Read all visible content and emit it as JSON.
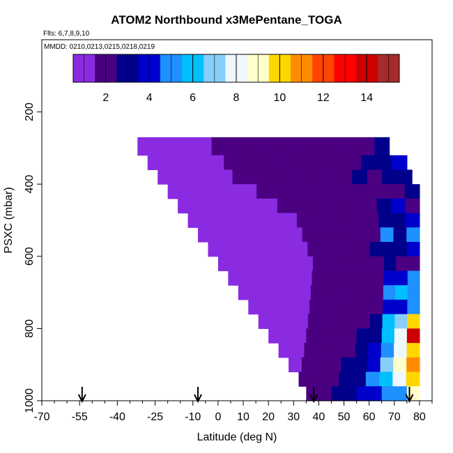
{
  "title": "ATOM2 Northbound x3MePentane_TOGA",
  "flights_label": "Flts: 6,7,8,9,10",
  "dates_label": "MMDD: 0210,0213,0215,0218,0219",
  "chart_data": {
    "type": "heatmap",
    "title": "ATOM2 Northbound x3MePentane_TOGA",
    "xlabel": "Latitude (deg N)",
    "ylabel": "PSXC (mbar)",
    "xlim": [
      -70,
      85
    ],
    "ylim": [
      1000,
      0
    ],
    "x_ticks": [
      -70,
      -55,
      -40,
      -25,
      -10,
      0,
      10,
      20,
      30,
      40,
      50,
      60,
      70,
      80
    ],
    "y_ticks": [
      200,
      400,
      600,
      800,
      1000
    ],
    "colorbar": {
      "range": [
        0.5,
        15.5
      ],
      "ticks": [
        2,
        4,
        6,
        8,
        10,
        12,
        14
      ],
      "colors": [
        "#8a2be2",
        "#4b0082",
        "#00008b",
        "#0000cd",
        "#1e90ff",
        "#00bfff",
        "#87cefa",
        "#f0f8ff",
        "#ffffcc",
        "#ffd700",
        "#ff8c00",
        "#ff4500",
        "#ff0000",
        "#cc0000",
        "#a52a2a"
      ]
    },
    "arrows_latitude": [
      -54,
      -8,
      38,
      76
    ],
    "rows": [
      {
        "p_top": 270,
        "p_bot": 320,
        "lat_start": -32,
        "lat_end": 68,
        "values": [
          1.2,
          1.2,
          1.3,
          1.3,
          1.4,
          1.5,
          1.7,
          1.8,
          2.0,
          2.2,
          2.3,
          2.3,
          2.2,
          2.3,
          2.4,
          2.4,
          2.5
        ]
      },
      {
        "p_top": 320,
        "p_bot": 360,
        "lat_start": -28,
        "lat_end": 75,
        "values": [
          1.2,
          1.2,
          1.3,
          1.3,
          1.4,
          1.5,
          1.6,
          1.7,
          1.9,
          2.0,
          2.2,
          2.3,
          2.3,
          2.4,
          2.5,
          2.6,
          3.5
        ]
      },
      {
        "p_top": 360,
        "p_bot": 400,
        "lat_start": -24,
        "lat_end": 77,
        "values": [
          1.2,
          1.2,
          1.2,
          1.3,
          1.4,
          1.5,
          1.6,
          1.7,
          1.9,
          2.0,
          2.2,
          2.3,
          2.4,
          2.5,
          2.4,
          3.0,
          2.5
        ]
      },
      {
        "p_top": 400,
        "p_bot": 440,
        "lat_start": -20,
        "lat_end": 80,
        "values": [
          1.1,
          1.1,
          1.2,
          1.2,
          1.3,
          1.4,
          1.5,
          1.6,
          1.7,
          1.8,
          1.9,
          2.0,
          2.1,
          2.2,
          2.4,
          2.0,
          3.2
        ]
      },
      {
        "p_top": 440,
        "p_bot": 480,
        "lat_start": -16,
        "lat_end": 80,
        "values": [
          1.1,
          1.1,
          1.1,
          1.2,
          1.2,
          1.3,
          1.4,
          1.5,
          1.6,
          1.7,
          1.8,
          1.9,
          2.0,
          2.1,
          2.6,
          3.8,
          2.4
        ]
      },
      {
        "p_top": 480,
        "p_bot": 520,
        "lat_start": -12,
        "lat_end": 80,
        "values": [
          1.1,
          1.1,
          1.1,
          1.1,
          1.2,
          1.2,
          1.3,
          1.4,
          1.5,
          1.6,
          1.7,
          1.9,
          2.0,
          2.3,
          3.2,
          2.8,
          3.6
        ]
      },
      {
        "p_top": 520,
        "p_bot": 560,
        "lat_start": -8,
        "lat_end": 80,
        "values": [
          1.1,
          1.1,
          1.1,
          1.1,
          1.2,
          1.2,
          1.3,
          1.4,
          1.5,
          1.6,
          1.7,
          1.8,
          2.0,
          2.4,
          4.5,
          3.0,
          5.0
        ]
      },
      {
        "p_top": 560,
        "p_bot": 600,
        "lat_start": -4,
        "lat_end": 80,
        "values": [
          1.1,
          1.1,
          1.1,
          1.1,
          1.1,
          1.2,
          1.3,
          1.4,
          1.5,
          1.6,
          1.7,
          1.8,
          2.0,
          2.5,
          3.2,
          2.6,
          4.2
        ]
      },
      {
        "p_top": 600,
        "p_bot": 640,
        "lat_start": 0,
        "lat_end": 80,
        "values": [
          1.1,
          1.1,
          1.1,
          1.1,
          1.1,
          1.2,
          1.3,
          1.4,
          1.5,
          1.6,
          1.7,
          1.8,
          2.0,
          2.4,
          2.6,
          2.2,
          2.4
        ]
      },
      {
        "p_top": 640,
        "p_bot": 680,
        "lat_start": 4,
        "lat_end": 80,
        "values": [
          1.1,
          1.1,
          1.1,
          1.2,
          1.2,
          1.3,
          1.4,
          1.5,
          1.6,
          1.7,
          1.8,
          2.0,
          2.3,
          3.8,
          4.2,
          4.5
        ]
      },
      {
        "p_top": 680,
        "p_bot": 720,
        "lat_start": 8,
        "lat_end": 80,
        "values": [
          1.1,
          1.1,
          1.2,
          1.2,
          1.3,
          1.4,
          1.5,
          1.6,
          1.7,
          1.8,
          2.0,
          2.4,
          4.5,
          5.5,
          5.0
        ]
      },
      {
        "p_top": 720,
        "p_bot": 760,
        "lat_start": 12,
        "lat_end": 80,
        "values": [
          1.1,
          1.2,
          1.2,
          1.3,
          1.4,
          1.5,
          1.6,
          1.7,
          1.8,
          2.0,
          2.3,
          3.5,
          4.0,
          4.5
        ]
      },
      {
        "p_top": 760,
        "p_bot": 800,
        "lat_start": 16,
        "lat_end": 80,
        "values": [
          1.1,
          1.2,
          1.3,
          1.4,
          1.5,
          1.6,
          1.8,
          2.0,
          2.2,
          2.8,
          5.5,
          7.0,
          9.5
        ]
      },
      {
        "p_top": 800,
        "p_bot": 840,
        "lat_start": 20,
        "lat_end": 80,
        "values": [
          1.2,
          1.3,
          1.4,
          1.6,
          1.8,
          2.0,
          2.2,
          2.5,
          3.2,
          6.0,
          8.0,
          14.0
        ]
      },
      {
        "p_top": 840,
        "p_bot": 880,
        "lat_start": 24,
        "lat_end": 80,
        "values": [
          1.3,
          1.4,
          1.6,
          1.8,
          2.0,
          2.3,
          2.7,
          3.5,
          5.0,
          7.5,
          10.0
        ]
      },
      {
        "p_top": 880,
        "p_bot": 920,
        "lat_start": 28,
        "lat_end": 80,
        "values": [
          1.4,
          1.6,
          1.9,
          2.2,
          2.6,
          3.2,
          4.2,
          6.5,
          8.5,
          10.5
        ]
      },
      {
        "p_top": 920,
        "p_bot": 960,
        "lat_start": 32,
        "lat_end": 80,
        "values": [
          1.6,
          1.9,
          2.2,
          2.6,
          3.4,
          4.5,
          6.0,
          7.5,
          9.5
        ]
      },
      {
        "p_top": 960,
        "p_bot": 1000,
        "lat_start": 35,
        "lat_end": 80,
        "values": [
          2.0,
          2.4,
          2.8,
          3.2,
          3.8,
          4.2,
          4.6,
          5.2,
          9.0
        ]
      }
    ]
  }
}
